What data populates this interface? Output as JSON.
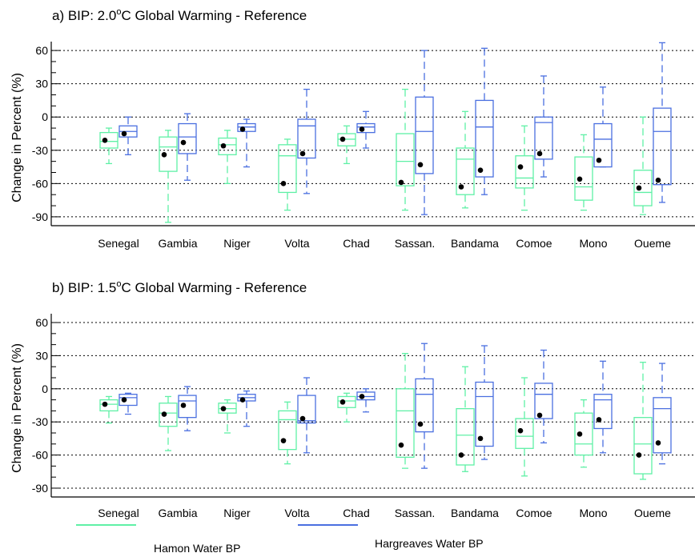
{
  "legend": {
    "hamon_label": "Hamon Water BP",
    "hargreaves_label": "Hargreaves Water BP"
  },
  "colors": {
    "hamon": "#5ff0a6",
    "hargreaves": "#4a6fe0",
    "mean": "#000000"
  },
  "chart_data": [
    {
      "type": "box",
      "title": "a) BIP: 2.0°C Global Warming - Reference",
      "title_parts": {
        "prefix": "a) BIP: 2.0",
        "sup": "o",
        "suffix": "C Global Warming - Reference"
      },
      "ylabel": "Change in Percent (%)",
      "ylim": [
        -98,
        68
      ],
      "yticks": [
        60,
        30,
        0,
        -30,
        -60,
        -90
      ],
      "ytick_labels": [
        "60",
        "30",
        "0",
        "-30",
        "-60",
        "-90"
      ],
      "grid": "dashed horizontal at major ticks",
      "categories": [
        "Senegal",
        "Gambia",
        "Niger",
        "Volta",
        "Chad",
        "Sassan.",
        "Bandama",
        "Comoe",
        "Mono",
        "Oueme"
      ],
      "series": [
        {
          "name": "Hamon Water BP",
          "boxes": [
            {
              "whislo": -42,
              "q1": -28,
              "med": -22,
              "q3": -14,
              "whishi": -10,
              "mean": -21
            },
            {
              "whislo": -95,
              "q1": -49,
              "med": -27,
              "q3": -18,
              "whishi": -12,
              "mean": -34
            },
            {
              "whislo": -60,
              "q1": -34,
              "med": -25,
              "q3": -19,
              "whishi": -12,
              "mean": -26
            },
            {
              "whislo": -84,
              "q1": -68,
              "med": -35,
              "q3": -25,
              "whishi": -20,
              "mean": -60
            },
            {
              "whislo": -42,
              "q1": -26,
              "med": -20,
              "q3": -15,
              "whishi": -8,
              "mean": -20
            },
            {
              "whislo": -84,
              "q1": -62,
              "med": -40,
              "q3": -15,
              "whishi": 25,
              "mean": -59
            },
            {
              "whislo": -82,
              "q1": -70,
              "med": -38,
              "q3": -28,
              "whishi": 5,
              "mean": -63
            },
            {
              "whislo": -84,
              "q1": -64,
              "med": -55,
              "q3": -35,
              "whishi": -8,
              "mean": -45
            },
            {
              "whislo": -84,
              "q1": -75,
              "med": -63,
              "q3": -36,
              "whishi": -16,
              "mean": -56
            },
            {
              "whislo": -88,
              "q1": -80,
              "med": -68,
              "q3": -48,
              "whishi": 0,
              "mean": -64
            }
          ]
        },
        {
          "name": "Hargreaves Water BP",
          "boxes": [
            {
              "whislo": -34,
              "q1": -18,
              "med": -13,
              "q3": -8,
              "whishi": 0,
              "mean": -15
            },
            {
              "whislo": -57,
              "q1": -33,
              "med": -18,
              "q3": -6,
              "whishi": 3,
              "mean": -23
            },
            {
              "whislo": -45,
              "q1": -13,
              "med": -9,
              "q3": -6,
              "whishi": -2,
              "mean": -11
            },
            {
              "whislo": -69,
              "q1": -37,
              "med": -8,
              "q3": -2,
              "whishi": 25,
              "mean": -33
            },
            {
              "whislo": -28,
              "q1": -14,
              "med": -9,
              "q3": -6,
              "whishi": 5,
              "mean": -11
            },
            {
              "whislo": -88,
              "q1": -51,
              "med": -13,
              "q3": 18,
              "whishi": 60,
              "mean": -43
            },
            {
              "whislo": -70,
              "q1": -54,
              "med": -9,
              "q3": 15,
              "whishi": 62,
              "mean": -48
            },
            {
              "whislo": -54,
              "q1": -38,
              "med": -5,
              "q3": 0,
              "whishi": 37,
              "mean": -33
            },
            {
              "whislo": -45,
              "q1": -45,
              "med": -20,
              "q3": -6,
              "whishi": 27,
              "mean": -39
            },
            {
              "whislo": -77,
              "q1": -61,
              "med": -13,
              "q3": 8,
              "whishi": 67,
              "mean": -57
            }
          ]
        }
      ]
    },
    {
      "type": "box",
      "title": "b) BIP: 1.5°C Global Warming - Reference",
      "title_parts": {
        "prefix": "b) BIP: 1.5",
        "sup": "o",
        "suffix": "C Global Warming - Reference"
      },
      "ylabel": "Change in Percent (%)",
      "ylim": [
        -98,
        68
      ],
      "yticks": [
        60,
        30,
        0,
        -30,
        -60,
        -90
      ],
      "ytick_labels": [
        "60",
        "30",
        "0",
        "-30",
        "-60",
        "-90"
      ],
      "grid": "dashed horizontal at major ticks",
      "categories": [
        "Senegal",
        "Gambia",
        "Niger",
        "Volta",
        "Chad",
        "Sassan.",
        "Bandama",
        "Comoe",
        "Mono",
        "Oueme"
      ],
      "series": [
        {
          "name": "Hamon Water BP",
          "boxes": [
            {
              "whislo": -31,
              "q1": -20,
              "med": -14,
              "q3": -10,
              "whishi": -7,
              "mean": -14
            },
            {
              "whislo": -56,
              "q1": -34,
              "med": -22,
              "q3": -13,
              "whishi": -7,
              "mean": -23
            },
            {
              "whislo": -40,
              "q1": -22,
              "med": -18,
              "q3": -13,
              "whishi": -10,
              "mean": -18
            },
            {
              "whislo": -68,
              "q1": -55,
              "med": -28,
              "q3": -20,
              "whishi": -12,
              "mean": -47
            },
            {
              "whislo": -30,
              "q1": -17,
              "med": -11,
              "q3": -7,
              "whishi": -4,
              "mean": -12
            },
            {
              "whislo": -72,
              "q1": -62,
              "med": -20,
              "q3": 0,
              "whishi": 32,
              "mean": -51
            },
            {
              "whislo": -75,
              "q1": -69,
              "med": -42,
              "q3": -18,
              "whishi": 20,
              "mean": -60
            },
            {
              "whislo": -79,
              "q1": -54,
              "med": -43,
              "q3": -27,
              "whishi": 10,
              "mean": -38
            },
            {
              "whislo": -71,
              "q1": -60,
              "med": -50,
              "q3": -22,
              "whishi": -10,
              "mean": -41
            },
            {
              "whislo": -82,
              "q1": -77,
              "med": -50,
              "q3": -26,
              "whishi": 24,
              "mean": -60
            }
          ]
        },
        {
          "name": "Hargreaves Water BP",
          "boxes": [
            {
              "whislo": -23,
              "q1": -15,
              "med": -8,
              "q3": -5,
              "whishi": -4,
              "mean": -10
            },
            {
              "whislo": -38,
              "q1": -26,
              "med": -11,
              "q3": -6,
              "whishi": 2,
              "mean": -15
            },
            {
              "whislo": -34,
              "q1": -11,
              "med": -8,
              "q3": -5,
              "whishi": -2,
              "mean": -10
            },
            {
              "whislo": -58,
              "q1": -31,
              "med": -29,
              "q3": -6,
              "whishi": 10,
              "mean": -27
            },
            {
              "whislo": -21,
              "q1": -10,
              "med": -7,
              "q3": -3,
              "whishi": 0,
              "mean": -7
            },
            {
              "whislo": -72,
              "q1": -39,
              "med": -5,
              "q3": 9,
              "whishi": 41,
              "mean": -32
            },
            {
              "whislo": -64,
              "q1": -52,
              "med": -7,
              "q3": 6,
              "whishi": 39,
              "mean": -45
            },
            {
              "whislo": -49,
              "q1": -27,
              "med": -5,
              "q3": 5,
              "whishi": 35,
              "mean": -24
            },
            {
              "whislo": -58,
              "q1": -36,
              "med": -10,
              "q3": -5,
              "whishi": 25,
              "mean": -28
            },
            {
              "whislo": -68,
              "q1": -58,
              "med": -18,
              "q3": -8,
              "whishi": 23,
              "mean": -49
            }
          ]
        }
      ]
    }
  ]
}
